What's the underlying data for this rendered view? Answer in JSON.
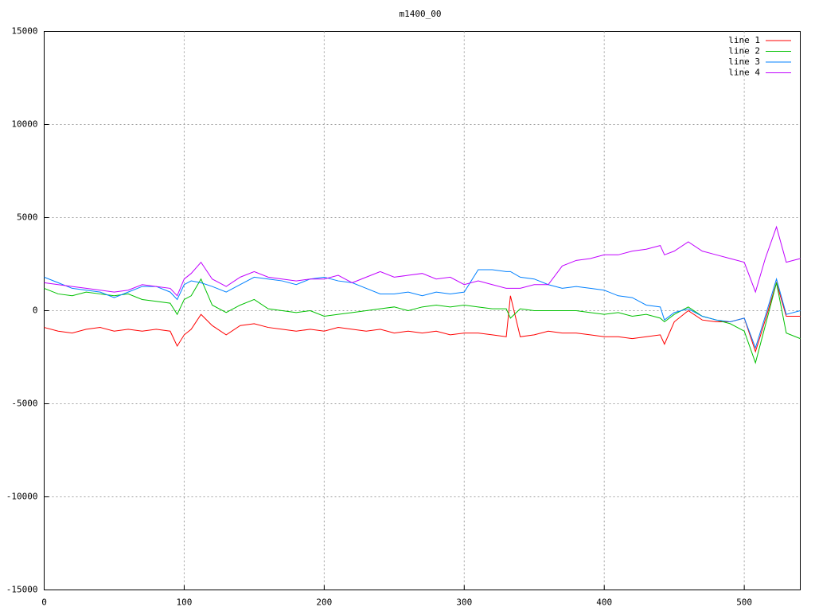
{
  "chart_data": {
    "type": "line",
    "title": "m1400_00",
    "x": [
      0,
      10,
      20,
      30,
      40,
      50,
      60,
      70,
      80,
      90,
      95,
      100,
      105,
      112,
      120,
      130,
      140,
      150,
      160,
      170,
      180,
      190,
      200,
      210,
      220,
      230,
      240,
      250,
      260,
      270,
      280,
      290,
      300,
      310,
      320,
      330,
      333,
      340,
      350,
      360,
      370,
      380,
      390,
      400,
      410,
      420,
      430,
      440,
      443,
      450,
      460,
      470,
      480,
      490,
      500,
      508,
      515,
      523,
      530,
      540
    ],
    "series": [
      {
        "name": "line 1",
        "color": "#ff0000",
        "values": [
          -900,
          -1100,
          -1200,
          -1000,
          -900,
          -1100,
          -1000,
          -1100,
          -1000,
          -1100,
          -1900,
          -1300,
          -1000,
          -200,
          -800,
          -1300,
          -800,
          -700,
          -900,
          -1000,
          -1100,
          -1000,
          -1100,
          -900,
          -1000,
          -1100,
          -1000,
          -1200,
          -1100,
          -1200,
          -1100,
          -1300,
          -1200,
          -1200,
          -1300,
          -1400,
          800,
          -1400,
          -1300,
          -1100,
          -1200,
          -1200,
          -1300,
          -1400,
          -1400,
          -1500,
          -1400,
          -1300,
          -1800,
          -600,
          0,
          -500,
          -600,
          -600,
          -400,
          -2200,
          -500,
          1500,
          -300,
          -300
        ]
      },
      {
        "name": "line 2",
        "color": "#00c000",
        "values": [
          1200,
          900,
          800,
          1000,
          900,
          800,
          900,
          600,
          500,
          400,
          -200,
          600,
          800,
          1700,
          300,
          -100,
          300,
          600,
          100,
          0,
          -100,
          0,
          -300,
          -200,
          -100,
          0,
          100,
          200,
          0,
          200,
          300,
          200,
          300,
          200,
          100,
          100,
          -400,
          100,
          0,
          0,
          0,
          0,
          -100,
          -200,
          -100,
          -300,
          -200,
          -400,
          -600,
          -200,
          200,
          -300,
          -500,
          -700,
          -1100,
          -2800,
          -800,
          1500,
          -1200,
          -1500
        ]
      },
      {
        "name": "line 3",
        "color": "#0080ff",
        "values": [
          1800,
          1500,
          1200,
          1100,
          1000,
          700,
          1000,
          1300,
          1300,
          1000,
          600,
          1400,
          1600,
          1500,
          1300,
          1000,
          1400,
          1800,
          1700,
          1600,
          1400,
          1700,
          1800,
          1600,
          1500,
          1200,
          900,
          900,
          1000,
          800,
          1000,
          900,
          1000,
          2200,
          2200,
          2100,
          2100,
          1800,
          1700,
          1400,
          1200,
          1300,
          1200,
          1100,
          800,
          700,
          300,
          200,
          -500,
          -100,
          100,
          -300,
          -500,
          -600,
          -400,
          -2000,
          -300,
          1700,
          -200,
          0
        ]
      },
      {
        "name": "line 4",
        "color": "#c000ff",
        "values": [
          1500,
          1400,
          1300,
          1200,
          1100,
          1000,
          1100,
          1400,
          1300,
          1200,
          800,
          1700,
          2000,
          2600,
          1700,
          1300,
          1800,
          2100,
          1800,
          1700,
          1600,
          1700,
          1700,
          1900,
          1500,
          1800,
          2100,
          1800,
          1900,
          2000,
          1700,
          1800,
          1400,
          1600,
          1400,
          1200,
          1200,
          1200,
          1400,
          1400,
          2400,
          2700,
          2800,
          3000,
          3000,
          3200,
          3300,
          3500,
          3000,
          3200,
          3700,
          3200,
          3000,
          2800,
          2600,
          1000,
          2800,
          4500,
          2600,
          2800
        ]
      }
    ],
    "xlim": [
      0,
      540
    ],
    "ylim": [
      -15000,
      15000
    ],
    "xticks": [
      0,
      100,
      200,
      300,
      400,
      500
    ],
    "yticks": [
      -15000,
      -10000,
      -5000,
      0,
      5000,
      10000,
      15000
    ],
    "grid": true,
    "legend": "top-right"
  }
}
